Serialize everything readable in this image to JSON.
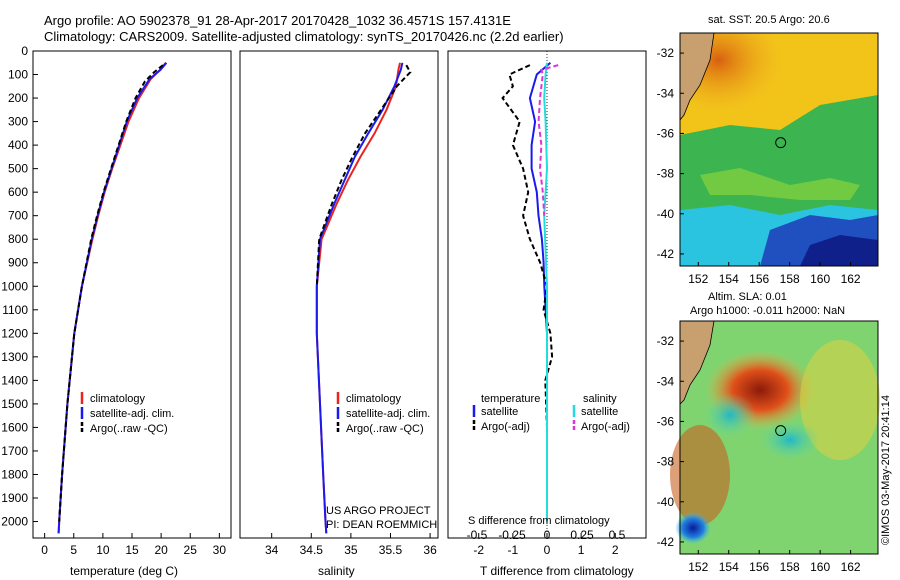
{
  "header": {
    "title_line1": "Argo profile: AO 5902378_91 28-Apr-2017 20170428_1032 36.4571S 157.4131E",
    "title_line2": "Climatology: CARS2009. Satellite-adjusted climatology: synTS_20170426.nc (2.2d earlier)"
  },
  "side_note": "©IMOS 03-May-2017 20:41:14",
  "project_note": {
    "line1": "US ARGO PROJECT",
    "line2": "PI: DEAN ROEMMICH"
  },
  "colors": {
    "climatology": "#e8251f",
    "satellite": "#1a1aee",
    "argo": "#000000",
    "sal_satellite": "#22dddd",
    "sal_argo": "#dd33dd"
  },
  "chart_data": [
    {
      "type": "line",
      "name": "temperature",
      "xlabel": "temperature (deg C)",
      "ylabel": "",
      "xlim": [
        -2,
        32
      ],
      "ylim": [
        2070,
        0
      ],
      "xticks": [
        0,
        5,
        10,
        15,
        20,
        25,
        30
      ],
      "yticks": [
        0,
        100,
        200,
        300,
        400,
        500,
        600,
        700,
        800,
        900,
        1000,
        1100,
        1200,
        1300,
        1400,
        1500,
        1600,
        1700,
        1800,
        1900,
        2000
      ],
      "legend": [
        "climatology",
        "satellite-adj. clim.",
        "Argo(..raw -QC)"
      ],
      "series": [
        {
          "name": "climatology",
          "style": "solid",
          "depth": [
            50,
            80,
            120,
            200,
            300,
            400,
            500,
            600,
            700,
            800,
            1000,
            1200,
            1500,
            1800,
            2000,
            2050
          ],
          "values": [
            20.8,
            19.8,
            18.2,
            16.2,
            14.4,
            13.0,
            11.6,
            10.3,
            9.2,
            8.2,
            6.4,
            5.1,
            3.9,
            3.0,
            2.5,
            2.4
          ]
        },
        {
          "name": "satellite-adj. clim.",
          "style": "solid",
          "depth": [
            50,
            80,
            120,
            200,
            300,
            400,
            500,
            600,
            700,
            800,
            1000,
            1200,
            1500,
            1800,
            2000,
            2050
          ],
          "values": [
            20.9,
            19.9,
            18.0,
            15.9,
            14.1,
            12.8,
            11.5,
            10.2,
            9.1,
            8.1,
            6.4,
            5.1,
            3.9,
            3.0,
            2.5,
            2.4
          ]
        },
        {
          "name": "Argo(..raw -QC)",
          "style": "dashed",
          "depth": [
            60,
            90,
            130,
            200,
            300,
            400,
            500,
            600,
            700,
            800,
            1000,
            1200,
            1500,
            1800,
            2000
          ],
          "values": [
            20.3,
            18.8,
            17.2,
            15.6,
            14.0,
            12.7,
            11.4,
            10.1,
            9.0,
            8.0,
            6.4,
            5.1,
            3.9,
            3.0,
            2.5
          ]
        }
      ]
    },
    {
      "type": "line",
      "name": "salinity",
      "xlabel": "salinity",
      "ylabel": "",
      "xlim": [
        33.6,
        36.1
      ],
      "ylim": [
        2070,
        0
      ],
      "xticks": [
        34,
        34.5,
        35,
        35.5,
        36
      ],
      "legend": [
        "climatology",
        "satellite-adj. clim.",
        "Argo(..raw -QC)"
      ],
      "series": [
        {
          "name": "climatology",
          "style": "solid",
          "depth": [
            50,
            80,
            150,
            250,
            350,
            450,
            550,
            650,
            800,
            1000,
            1200,
            1500,
            1800,
            2000,
            2050
          ],
          "values": [
            35.62,
            35.6,
            35.57,
            35.45,
            35.3,
            35.12,
            34.96,
            34.82,
            34.63,
            34.57,
            34.57,
            34.61,
            34.65,
            34.68,
            34.69
          ]
        },
        {
          "name": "satellite-adj. clim.",
          "style": "solid",
          "depth": [
            50,
            80,
            150,
            250,
            350,
            450,
            550,
            650,
            800,
            1000,
            1200,
            1500,
            1800,
            2000,
            2050
          ],
          "values": [
            35.65,
            35.63,
            35.55,
            35.4,
            35.22,
            35.05,
            34.92,
            34.79,
            34.61,
            34.57,
            34.57,
            34.61,
            34.65,
            34.68,
            34.69
          ]
        },
        {
          "name": "Argo(..raw -QC)",
          "style": "dashed",
          "depth": [
            60,
            90,
            150,
            250,
            350,
            450,
            550,
            650,
            800,
            1000
          ],
          "values": [
            35.7,
            35.75,
            35.58,
            35.38,
            35.18,
            35.02,
            34.88,
            34.76,
            34.6,
            34.57
          ]
        }
      ]
    },
    {
      "type": "line",
      "name": "difference",
      "xlabel": "T difference from climatology",
      "xlabel_top": "S difference from climatology",
      "xlim": [
        -2.9,
        2.9
      ],
      "ylim": [
        2070,
        0
      ],
      "xticks": [
        -2,
        -1,
        0,
        1,
        2
      ],
      "sticks": [
        "-0.5",
        "-0.25",
        "0",
        "0.25",
        "0.5"
      ],
      "legend_titles": [
        "temperature",
        "salinity"
      ],
      "legend": [
        "satellite",
        "Argo(-adj)",
        "satellite",
        "Argo(-adj)"
      ],
      "series": [
        {
          "name": "T satellite",
          "style": "solid",
          "depth": [
            50,
            100,
            200,
            300,
            400,
            500,
            600,
            700,
            800,
            900,
            1000,
            1200,
            1400,
            1600,
            2000
          ],
          "values": [
            0.1,
            -0.3,
            -0.5,
            -0.35,
            -0.45,
            -0.45,
            -0.3,
            -0.25,
            -0.15,
            -0.1,
            -0.08,
            0,
            0,
            0,
            0
          ]
        },
        {
          "name": "T Argo(-adj)",
          "style": "dashed",
          "depth": [
            60,
            100,
            150,
            200,
            300,
            400,
            500,
            600,
            700,
            800,
            900,
            1000,
            1100,
            1200,
            1300,
            1400,
            1600,
            2000
          ],
          "values": [
            -0.5,
            -1.1,
            -1.0,
            -1.3,
            -0.8,
            -1.0,
            -0.7,
            -0.55,
            -0.7,
            -0.5,
            -0.2,
            0,
            -0.1,
            0.1,
            0.15,
            -0.05,
            0,
            0
          ]
        },
        {
          "name": "S satellite",
          "style": "solid",
          "depth": [
            50,
            100,
            200,
            300,
            500,
            700,
            1000,
            1500,
            2000
          ],
          "values": [
            0.0,
            -0.01,
            -0.02,
            -0.01,
            0.0,
            -0.02,
            0.0,
            0.0,
            0.0
          ]
        },
        {
          "name": "S Argo(-adj)",
          "style": "dashed",
          "depth": [
            60,
            80,
            100,
            200,
            300,
            400,
            500,
            600,
            700
          ],
          "values": [
            0.08,
            -0.04,
            -0.03,
            -0.05,
            -0.06,
            -0.04,
            -0.05,
            -0.03,
            -0.02
          ]
        }
      ]
    },
    {
      "type": "heatmap",
      "name": "sst_map",
      "title": "sat. SST: 20.5 Argo: 20.6",
      "xticks": [
        "152",
        "154",
        "156",
        "158",
        "160",
        "162"
      ],
      "yticks": [
        "-32",
        "-34",
        "-36",
        "-38",
        "-40",
        "-42"
      ],
      "float_lon": 157.41,
      "float_lat": -36.46
    },
    {
      "type": "heatmap",
      "name": "sla_map",
      "title_line1": "Altim. SLA: 0.01",
      "title_line2": "Argo h1000: -0.011 h2000: NaN",
      "xticks": [
        "152",
        "154",
        "156",
        "158",
        "160",
        "162"
      ],
      "yticks": [
        "-32",
        "-34",
        "-36",
        "-38",
        "-40",
        "-42"
      ],
      "float_lon": 157.41,
      "float_lat": -36.46
    }
  ]
}
